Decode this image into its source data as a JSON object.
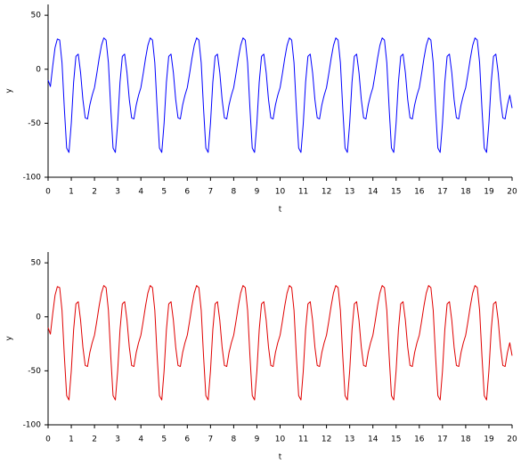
{
  "chart_data": [
    {
      "type": "line",
      "xlabel": "t",
      "ylabel": "y",
      "color": "#0000ff",
      "xlim": [
        0,
        20
      ],
      "ylim": [
        -100,
        60
      ],
      "xticks": [
        0,
        1,
        2,
        3,
        4,
        5,
        6,
        7,
        8,
        9,
        10,
        11,
        12,
        13,
        14,
        15,
        16,
        17,
        18,
        19,
        20
      ],
      "yticks": [
        -100,
        -50,
        0,
        50
      ],
      "x": [
        0,
        0.1,
        0.2,
        0.3,
        0.4,
        0.5,
        0.6,
        0.7,
        0.8,
        0.9,
        1,
        1.1,
        1.2,
        1.3,
        1.4,
        1.5,
        1.6,
        1.7,
        1.8,
        1.9,
        2,
        2.1,
        2.2,
        2.3,
        2.4,
        2.5,
        2.6,
        2.7,
        2.8,
        2.9,
        3,
        3.1,
        3.2,
        3.3,
        3.4,
        3.5,
        3.6,
        3.7,
        3.8,
        3.9,
        4,
        4.1,
        4.2,
        4.3,
        4.4,
        4.5,
        4.6,
        4.7,
        4.8,
        4.9,
        5,
        5.1,
        5.2,
        5.3,
        5.4,
        5.5,
        5.6,
        5.7,
        5.8,
        5.9,
        6,
        6.1,
        6.2,
        6.3,
        6.4,
        6.5,
        6.6,
        6.7,
        6.8,
        6.9,
        7,
        7.1,
        7.2,
        7.3,
        7.4,
        7.5,
        7.6,
        7.7,
        7.8,
        7.9,
        8,
        8.1,
        8.2,
        8.3,
        8.4,
        8.5,
        8.6,
        8.7,
        8.8,
        8.9,
        9,
        9.1,
        9.2,
        9.3,
        9.4,
        9.5,
        9.6,
        9.7,
        9.8,
        9.9,
        10,
        10.1,
        10.2,
        10.3,
        10.4,
        10.5,
        10.6,
        10.7,
        10.8,
        10.9,
        11,
        11.1,
        11.2,
        11.3,
        11.4,
        11.5,
        11.6,
        11.7,
        11.8,
        11.9,
        12,
        12.1,
        12.2,
        12.3,
        12.4,
        12.5,
        12.6,
        12.7,
        12.8,
        12.9,
        13,
        13.1,
        13.2,
        13.3,
        13.4,
        13.5,
        13.6,
        13.7,
        13.8,
        13.9,
        14,
        14.1,
        14.2,
        14.3,
        14.4,
        14.5,
        14.6,
        14.7,
        14.8,
        14.9,
        15,
        15.1,
        15.2,
        15.3,
        15.4,
        15.5,
        15.6,
        15.7,
        15.8,
        15.9,
        16,
        16.1,
        16.2,
        16.3,
        16.4,
        16.5,
        16.6,
        16.7,
        16.8,
        16.9,
        17,
        17.1,
        17.2,
        17.3,
        17.4,
        17.5,
        17.6,
        17.7,
        17.8,
        17.9,
        18,
        18.1,
        18.2,
        18.3,
        18.4,
        18.5,
        18.6,
        18.7,
        18.8,
        18.9,
        19,
        19.1,
        19.2,
        19.3,
        19.4,
        19.5,
        19.6,
        19.7,
        19.8,
        19.9,
        20
      ],
      "values": [
        -10,
        -16,
        3,
        20,
        28,
        27,
        6,
        -36,
        -73,
        -77,
        -50,
        -12,
        12,
        14,
        -3,
        -28,
        -45,
        -46,
        -33,
        -24,
        -17,
        -4,
        10,
        22,
        29,
        27,
        6,
        -36,
        -73,
        -77,
        -50,
        -12,
        12,
        14,
        -3,
        -28,
        -45,
        -46,
        -33,
        -24,
        -17,
        -4,
        10,
        22,
        29,
        27,
        6,
        -36,
        -73,
        -77,
        -50,
        -12,
        12,
        14,
        -3,
        -28,
        -45,
        -46,
        -33,
        -24,
        -17,
        -4,
        10,
        22,
        29,
        27,
        6,
        -36,
        -73,
        -77,
        -50,
        -12,
        12,
        14,
        -3,
        -28,
        -45,
        -46,
        -33,
        -24,
        -17,
        -4,
        10,
        22,
        29,
        27,
        6,
        -36,
        -73,
        -77,
        -50,
        -12,
        12,
        14,
        -3,
        -28,
        -45,
        -46,
        -33,
        -24,
        -17,
        -4,
        10,
        22,
        29,
        27,
        6,
        -36,
        -73,
        -77,
        -50,
        -12,
        12,
        14,
        -3,
        -28,
        -45,
        -46,
        -33,
        -24,
        -17,
        -4,
        10,
        22,
        29,
        27,
        6,
        -36,
        -73,
        -77,
        -50,
        -12,
        12,
        14,
        -3,
        -28,
        -45,
        -46,
        -33,
        -24,
        -17,
        -4,
        10,
        22,
        29,
        27,
        6,
        -36,
        -73,
        -77,
        -50,
        -12,
        12,
        14,
        -3,
        -28,
        -45,
        -46,
        -33,
        -24,
        -17,
        -4,
        10,
        22,
        29,
        27,
        6,
        -36,
        -73,
        -77,
        -50,
        -12,
        12,
        14,
        -3,
        -28,
        -45,
        -46,
        -33,
        -24,
        -17,
        -4,
        10,
        22,
        29,
        27,
        6,
        -36,
        -73,
        -77,
        -50,
        -12,
        12,
        14,
        -3,
        -28,
        -45,
        -46,
        -33,
        -24,
        -36
      ]
    },
    {
      "type": "line",
      "xlabel": "t",
      "ylabel": "y",
      "color": "#e00000",
      "xlim": [
        0,
        20
      ],
      "ylim": [
        -100,
        60
      ],
      "xticks": [
        0,
        1,
        2,
        3,
        4,
        5,
        6,
        7,
        8,
        9,
        10,
        11,
        12,
        13,
        14,
        15,
        16,
        17,
        18,
        19,
        20
      ],
      "yticks": [
        -100,
        -50,
        0,
        50
      ],
      "x": [
        0,
        0.1,
        0.2,
        0.3,
        0.4,
        0.5,
        0.6,
        0.7,
        0.8,
        0.9,
        1,
        1.1,
        1.2,
        1.3,
        1.4,
        1.5,
        1.6,
        1.7,
        1.8,
        1.9,
        2,
        2.1,
        2.2,
        2.3,
        2.4,
        2.5,
        2.6,
        2.7,
        2.8,
        2.9,
        3,
        3.1,
        3.2,
        3.3,
        3.4,
        3.5,
        3.6,
        3.7,
        3.8,
        3.9,
        4,
        4.1,
        4.2,
        4.3,
        4.4,
        4.5,
        4.6,
        4.7,
        4.8,
        4.9,
        5,
        5.1,
        5.2,
        5.3,
        5.4,
        5.5,
        5.6,
        5.7,
        5.8,
        5.9,
        6,
        6.1,
        6.2,
        6.3,
        6.4,
        6.5,
        6.6,
        6.7,
        6.8,
        6.9,
        7,
        7.1,
        7.2,
        7.3,
        7.4,
        7.5,
        7.6,
        7.7,
        7.8,
        7.9,
        8,
        8.1,
        8.2,
        8.3,
        8.4,
        8.5,
        8.6,
        8.7,
        8.8,
        8.9,
        9,
        9.1,
        9.2,
        9.3,
        9.4,
        9.5,
        9.6,
        9.7,
        9.8,
        9.9,
        10,
        10.1,
        10.2,
        10.3,
        10.4,
        10.5,
        10.6,
        10.7,
        10.8,
        10.9,
        11,
        11.1,
        11.2,
        11.3,
        11.4,
        11.5,
        11.6,
        11.7,
        11.8,
        11.9,
        12,
        12.1,
        12.2,
        12.3,
        12.4,
        12.5,
        12.6,
        12.7,
        12.8,
        12.9,
        13,
        13.1,
        13.2,
        13.3,
        13.4,
        13.5,
        13.6,
        13.7,
        13.8,
        13.9,
        14,
        14.1,
        14.2,
        14.3,
        14.4,
        14.5,
        14.6,
        14.7,
        14.8,
        14.9,
        15,
        15.1,
        15.2,
        15.3,
        15.4,
        15.5,
        15.6,
        15.7,
        15.8,
        15.9,
        16,
        16.1,
        16.2,
        16.3,
        16.4,
        16.5,
        16.6,
        16.7,
        16.8,
        16.9,
        17,
        17.1,
        17.2,
        17.3,
        17.4,
        17.5,
        17.6,
        17.7,
        17.8,
        17.9,
        18,
        18.1,
        18.2,
        18.3,
        18.4,
        18.5,
        18.6,
        18.7,
        18.8,
        18.9,
        19,
        19.1,
        19.2,
        19.3,
        19.4,
        19.5,
        19.6,
        19.7,
        19.8,
        19.9,
        20
      ],
      "values": [
        -10,
        -16,
        3,
        20,
        28,
        27,
        6,
        -36,
        -73,
        -77,
        -50,
        -12,
        12,
        14,
        -3,
        -28,
        -45,
        -46,
        -33,
        -24,
        -17,
        -4,
        10,
        22,
        29,
        27,
        6,
        -36,
        -73,
        -77,
        -50,
        -12,
        12,
        14,
        -3,
        -28,
        -45,
        -46,
        -33,
        -24,
        -17,
        -4,
        10,
        22,
        29,
        27,
        6,
        -36,
        -73,
        -77,
        -50,
        -12,
        12,
        14,
        -3,
        -28,
        -45,
        -46,
        -33,
        -24,
        -17,
        -4,
        10,
        22,
        29,
        27,
        6,
        -36,
        -73,
        -77,
        -50,
        -12,
        12,
        14,
        -3,
        -28,
        -45,
        -46,
        -33,
        -24,
        -17,
        -4,
        10,
        22,
        29,
        27,
        6,
        -36,
        -73,
        -77,
        -50,
        -12,
        12,
        14,
        -3,
        -28,
        -45,
        -46,
        -33,
        -24,
        -17,
        -4,
        10,
        22,
        29,
        27,
        6,
        -36,
        -73,
        -77,
        -50,
        -12,
        12,
        14,
        -3,
        -28,
        -45,
        -46,
        -33,
        -24,
        -17,
        -4,
        10,
        22,
        29,
        27,
        6,
        -36,
        -73,
        -77,
        -50,
        -12,
        12,
        14,
        -3,
        -28,
        -45,
        -46,
        -33,
        -24,
        -17,
        -4,
        10,
        22,
        29,
        27,
        6,
        -36,
        -73,
        -77,
        -50,
        -12,
        12,
        14,
        -3,
        -28,
        -45,
        -46,
        -33,
        -24,
        -17,
        -4,
        10,
        22,
        29,
        27,
        6,
        -36,
        -73,
        -77,
        -50,
        -12,
        12,
        14,
        -3,
        -28,
        -45,
        -46,
        -33,
        -24,
        -17,
        -4,
        10,
        22,
        29,
        27,
        6,
        -36,
        -73,
        -77,
        -50,
        -12,
        12,
        14,
        -3,
        -28,
        -45,
        -46,
        -33,
        -24,
        -36
      ]
    }
  ]
}
